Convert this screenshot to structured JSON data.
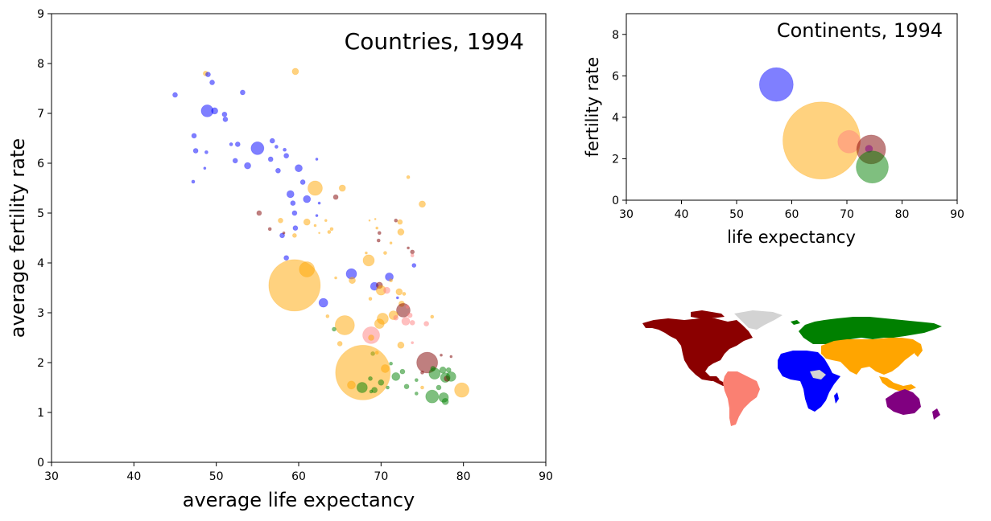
{
  "chart_data": [
    {
      "type": "scatter",
      "title": "Countries, 1994",
      "xlabel": "average life expectancy",
      "ylabel": "average fertility rate",
      "xlim": [
        30,
        90
      ],
      "ylim": [
        0,
        9
      ],
      "xticks": [
        "30",
        "40",
        "50",
        "60",
        "70",
        "80",
        "90"
      ],
      "yticks": [
        "0",
        "1",
        "2",
        "3",
        "4",
        "5",
        "6",
        "7",
        "8",
        "9"
      ],
      "grid": false,
      "points": [
        {
          "x": 45.0,
          "y": 7.37,
          "s": 3.0,
          "c": "#0000ff"
        },
        {
          "x": 48.9,
          "y": 7.05,
          "s": 7.5,
          "c": "#0000ff"
        },
        {
          "x": 48.7,
          "y": 7.8,
          "s": 3.0,
          "c": "#ffa500"
        },
        {
          "x": 49.0,
          "y": 7.78,
          "s": 3.0,
          "c": "#0000ff"
        },
        {
          "x": 49.5,
          "y": 7.62,
          "s": 3.0,
          "c": "#0000ff"
        },
        {
          "x": 49.8,
          "y": 7.05,
          "s": 4.0,
          "c": "#0000ff"
        },
        {
          "x": 51.0,
          "y": 6.98,
          "s": 3.0,
          "c": "#0000ff"
        },
        {
          "x": 51.1,
          "y": 6.88,
          "s": 3.0,
          "c": "#0000ff"
        },
        {
          "x": 53.2,
          "y": 7.42,
          "s": 3.0,
          "c": "#0000ff"
        },
        {
          "x": 59.6,
          "y": 7.84,
          "s": 4.0,
          "c": "#ffa500"
        },
        {
          "x": 47.3,
          "y": 6.55,
          "s": 3.0,
          "c": "#0000ff"
        },
        {
          "x": 47.5,
          "y": 6.25,
          "s": 3.0,
          "c": "#0000ff"
        },
        {
          "x": 48.8,
          "y": 6.22,
          "s": 2.0,
          "c": "#0000ff"
        },
        {
          "x": 47.2,
          "y": 5.63,
          "s": 2.0,
          "c": "#0000ff"
        },
        {
          "x": 48.6,
          "y": 5.9,
          "s": 1.5,
          "c": "#0000ff"
        },
        {
          "x": 51.8,
          "y": 6.38,
          "s": 2.0,
          "c": "#0000ff"
        },
        {
          "x": 52.6,
          "y": 6.38,
          "s": 3.0,
          "c": "#0000ff"
        },
        {
          "x": 52.3,
          "y": 6.05,
          "s": 3.0,
          "c": "#0000ff"
        },
        {
          "x": 53.8,
          "y": 5.95,
          "s": 4.0,
          "c": "#0000ff"
        },
        {
          "x": 55.0,
          "y": 6.3,
          "s": 8.0,
          "c": "#0000ff"
        },
        {
          "x": 56.8,
          "y": 6.45,
          "s": 3.0,
          "c": "#0000ff"
        },
        {
          "x": 57.3,
          "y": 6.33,
          "s": 2.0,
          "c": "#0000ff"
        },
        {
          "x": 56.6,
          "y": 6.08,
          "s": 3.0,
          "c": "#0000ff"
        },
        {
          "x": 58.3,
          "y": 6.27,
          "s": 2.0,
          "c": "#0000ff"
        },
        {
          "x": 58.5,
          "y": 6.15,
          "s": 3.0,
          "c": "#0000ff"
        },
        {
          "x": 57.5,
          "y": 5.85,
          "s": 3.0,
          "c": "#0000ff"
        },
        {
          "x": 60.0,
          "y": 5.9,
          "s": 4.5,
          "c": "#0000ff"
        },
        {
          "x": 60.5,
          "y": 5.62,
          "s": 3.0,
          "c": "#0000ff"
        },
        {
          "x": 62.2,
          "y": 6.08,
          "s": 1.5,
          "c": "#0000ff"
        },
        {
          "x": 59.0,
          "y": 5.38,
          "s": 4.5,
          "c": "#0000ff"
        },
        {
          "x": 59.3,
          "y": 5.2,
          "s": 3.0,
          "c": "#0000ff"
        },
        {
          "x": 59.5,
          "y": 5.0,
          "s": 3.0,
          "c": "#0000ff"
        },
        {
          "x": 59.6,
          "y": 4.7,
          "s": 3.0,
          "c": "#0000ff"
        },
        {
          "x": 58.0,
          "y": 4.55,
          "s": 3.0,
          "c": "#0000ff"
        },
        {
          "x": 62.0,
          "y": 5.5,
          "s": 9.0,
          "c": "#ffa500"
        },
        {
          "x": 61.0,
          "y": 5.28,
          "s": 4.5,
          "c": "#0000ff"
        },
        {
          "x": 62.5,
          "y": 5.2,
          "s": 1.5,
          "c": "#0000ff"
        },
        {
          "x": 62.2,
          "y": 4.95,
          "s": 1.5,
          "c": "#0000ff"
        },
        {
          "x": 65.3,
          "y": 5.5,
          "s": 4.0,
          "c": "#ffa500"
        },
        {
          "x": 64.5,
          "y": 5.32,
          "s": 3.0,
          "c": "#800000"
        },
        {
          "x": 55.2,
          "y": 5.0,
          "s": 3.0,
          "c": "#800000"
        },
        {
          "x": 57.8,
          "y": 4.85,
          "s": 3.0,
          "c": "#ffa500"
        },
        {
          "x": 61.0,
          "y": 4.82,
          "s": 4.0,
          "c": "#ffa500"
        },
        {
          "x": 62.0,
          "y": 4.75,
          "s": 1.5,
          "c": "#ffa500"
        },
        {
          "x": 63.3,
          "y": 4.85,
          "s": 1.5,
          "c": "#ffa500"
        },
        {
          "x": 64.0,
          "y": 4.68,
          "s": 2.0,
          "c": "#ffa500"
        },
        {
          "x": 63.7,
          "y": 4.62,
          "s": 2.0,
          "c": "#ffa500"
        },
        {
          "x": 56.5,
          "y": 4.68,
          "s": 2.0,
          "c": "#800000"
        },
        {
          "x": 58.2,
          "y": 4.6,
          "s": 1.5,
          "c": "#800000"
        },
        {
          "x": 62.5,
          "y": 4.6,
          "s": 1.0,
          "c": "#ffa500"
        },
        {
          "x": 59.5,
          "y": 4.55,
          "s": 2.5,
          "c": "#ffa500"
        },
        {
          "x": 58.5,
          "y": 4.1,
          "s": 3.0,
          "c": "#0000ff"
        },
        {
          "x": 68.6,
          "y": 4.85,
          "s": 1.0,
          "c": "#ffa500"
        },
        {
          "x": 69.3,
          "y": 4.88,
          "s": 1.0,
          "c": "#ffa500"
        },
        {
          "x": 72.3,
          "y": 4.82,
          "s": 3.0,
          "c": "#ffa500"
        },
        {
          "x": 71.8,
          "y": 4.85,
          "s": 2.0,
          "c": "#800000"
        },
        {
          "x": 73.3,
          "y": 5.72,
          "s": 2.0,
          "c": "#ffa500"
        },
        {
          "x": 75.0,
          "y": 5.18,
          "s": 4.0,
          "c": "#ffa500"
        },
        {
          "x": 69.5,
          "y": 4.7,
          "s": 1.5,
          "c": "#ffa500"
        },
        {
          "x": 69.8,
          "y": 4.6,
          "s": 2.0,
          "c": "#800000"
        },
        {
          "x": 72.4,
          "y": 4.62,
          "s": 4.0,
          "c": "#ffa500"
        },
        {
          "x": 69.7,
          "y": 4.45,
          "s": 2.0,
          "c": "#800000"
        },
        {
          "x": 71.2,
          "y": 4.4,
          "s": 1.5,
          "c": "#ffa500"
        },
        {
          "x": 73.3,
          "y": 4.3,
          "s": 1.5,
          "c": "#800000"
        },
        {
          "x": 68.2,
          "y": 4.2,
          "s": 1.5,
          "c": "#ffa500"
        },
        {
          "x": 70.5,
          "y": 4.2,
          "s": 2.0,
          "c": "#ffa500"
        },
        {
          "x": 73.8,
          "y": 4.22,
          "s": 2.5,
          "c": "#800000"
        },
        {
          "x": 73.8,
          "y": 4.15,
          "s": 2.0,
          "c": "#ff8080"
        },
        {
          "x": 68.5,
          "y": 4.05,
          "s": 7.0,
          "c": "#ffa500"
        },
        {
          "x": 74.0,
          "y": 3.95,
          "s": 2.5,
          "c": "#0000ff"
        },
        {
          "x": 61.0,
          "y": 3.87,
          "s": 9.5,
          "c": "#ffa500"
        },
        {
          "x": 59.5,
          "y": 3.55,
          "s": 32.0,
          "c": "#ffa500"
        },
        {
          "x": 64.5,
          "y": 3.7,
          "s": 1.5,
          "c": "#ffa500"
        },
        {
          "x": 66.4,
          "y": 3.78,
          "s": 6.5,
          "c": "#0000ff"
        },
        {
          "x": 66.5,
          "y": 3.65,
          "s": 4.0,
          "c": "#ffa500"
        },
        {
          "x": 71.0,
          "y": 3.72,
          "s": 5.0,
          "c": "#0000ff"
        },
        {
          "x": 71.2,
          "y": 3.65,
          "s": 2.0,
          "c": "#ffa500"
        },
        {
          "x": 69.2,
          "y": 3.53,
          "s": 5.0,
          "c": "#0000ff"
        },
        {
          "x": 69.8,
          "y": 3.55,
          "s": 4.0,
          "c": "#800000"
        },
        {
          "x": 70.0,
          "y": 3.45,
          "s": 6.0,
          "c": "#ffa500"
        },
        {
          "x": 70.7,
          "y": 3.45,
          "s": 4.0,
          "c": "#ff8080"
        },
        {
          "x": 72.2,
          "y": 3.42,
          "s": 4.0,
          "c": "#ffa500"
        },
        {
          "x": 72.8,
          "y": 3.38,
          "s": 2.0,
          "c": "#ffa500"
        },
        {
          "x": 72.0,
          "y": 3.3,
          "s": 1.5,
          "c": "#0000ff"
        },
        {
          "x": 68.7,
          "y": 3.28,
          "s": 2.0,
          "c": "#ffa500"
        },
        {
          "x": 63.0,
          "y": 3.2,
          "s": 5.5,
          "c": "#0000ff"
        },
        {
          "x": 72.5,
          "y": 3.18,
          "s": 3.5,
          "c": "#ffa500"
        },
        {
          "x": 72.7,
          "y": 3.05,
          "s": 8.5,
          "c": "#800000"
        },
        {
          "x": 73.2,
          "y": 3.12,
          "s": 2.0,
          "c": "#ff8080"
        },
        {
          "x": 71.5,
          "y": 2.95,
          "s": 5.5,
          "c": "#ffa500"
        },
        {
          "x": 70.2,
          "y": 2.88,
          "s": 7.0,
          "c": "#ffa500"
        },
        {
          "x": 69.8,
          "y": 2.78,
          "s": 6.0,
          "c": "#ffa500"
        },
        {
          "x": 71.8,
          "y": 2.9,
          "s": 3.0,
          "c": "#ff8080"
        },
        {
          "x": 73.5,
          "y": 2.95,
          "s": 3.0,
          "c": "#ff8080"
        },
        {
          "x": 73.0,
          "y": 2.83,
          "s": 5.0,
          "c": "#ff8080"
        },
        {
          "x": 73.8,
          "y": 2.8,
          "s": 3.0,
          "c": "#ff8080"
        },
        {
          "x": 75.5,
          "y": 2.78,
          "s": 3.0,
          "c": "#ff8080"
        },
        {
          "x": 76.2,
          "y": 2.92,
          "s": 2.0,
          "c": "#ffa500"
        },
        {
          "x": 65.6,
          "y": 2.75,
          "s": 12.0,
          "c": "#ffa500"
        },
        {
          "x": 63.5,
          "y": 2.93,
          "s": 2.0,
          "c": "#ffa500"
        },
        {
          "x": 68.8,
          "y": 2.55,
          "s": 10.5,
          "c": "#ff8080"
        },
        {
          "x": 64.3,
          "y": 2.67,
          "s": 2.5,
          "c": "#008000"
        },
        {
          "x": 68.8,
          "y": 2.5,
          "s": 3.5,
          "c": "#ffa500"
        },
        {
          "x": 72.4,
          "y": 2.35,
          "s": 4.0,
          "c": "#ffa500"
        },
        {
          "x": 73.8,
          "y": 2.4,
          "s": 1.5,
          "c": "#ff8080"
        },
        {
          "x": 65.0,
          "y": 2.38,
          "s": 3.0,
          "c": "#ffa500"
        },
        {
          "x": 69.0,
          "y": 2.18,
          "s": 2.5,
          "c": "#008000"
        },
        {
          "x": 69.5,
          "y": 2.2,
          "s": 2.0,
          "c": "#ffa500"
        },
        {
          "x": 77.3,
          "y": 2.15,
          "s": 1.5,
          "c": "#800000"
        },
        {
          "x": 75.6,
          "y": 2.0,
          "s": 13.0,
          "c": "#800000"
        },
        {
          "x": 75.0,
          "y": 1.8,
          "s": 2.0,
          "c": "#800000"
        },
        {
          "x": 78.5,
          "y": 2.12,
          "s": 1.5,
          "c": "#800000"
        },
        {
          "x": 67.8,
          "y": 1.8,
          "s": 34.0,
          "c": "#ffa500"
        },
        {
          "x": 70.5,
          "y": 1.88,
          "s": 5.0,
          "c": "#ffa500"
        },
        {
          "x": 71.2,
          "y": 1.98,
          "s": 2.0,
          "c": "#008000"
        },
        {
          "x": 71.8,
          "y": 1.72,
          "s": 5.0,
          "c": "#008000"
        },
        {
          "x": 72.6,
          "y": 1.82,
          "s": 3.0,
          "c": "#008000"
        },
        {
          "x": 70.0,
          "y": 1.6,
          "s": 3.5,
          "c": "#008000"
        },
        {
          "x": 68.7,
          "y": 1.68,
          "s": 2.5,
          "c": "#008000"
        },
        {
          "x": 66.4,
          "y": 1.55,
          "s": 5.0,
          "c": "#ffa500"
        },
        {
          "x": 67.7,
          "y": 1.5,
          "s": 6.5,
          "c": "#008000"
        },
        {
          "x": 69.2,
          "y": 1.45,
          "s": 3.5,
          "c": "#008000"
        },
        {
          "x": 70.8,
          "y": 1.5,
          "s": 2.0,
          "c": "#008000"
        },
        {
          "x": 73.1,
          "y": 1.52,
          "s": 3.0,
          "c": "#008000"
        },
        {
          "x": 74.3,
          "y": 1.65,
          "s": 2.0,
          "c": "#008000"
        },
        {
          "x": 74.3,
          "y": 1.38,
          "s": 2.0,
          "c": "#008000"
        },
        {
          "x": 76.3,
          "y": 1.88,
          "s": 3.0,
          "c": "#008000"
        },
        {
          "x": 76.5,
          "y": 1.78,
          "s": 7.0,
          "c": "#008000"
        },
        {
          "x": 77.5,
          "y": 1.85,
          "s": 4.0,
          "c": "#008000"
        },
        {
          "x": 78.2,
          "y": 1.85,
          "s": 3.0,
          "c": "#008000"
        },
        {
          "x": 77.8,
          "y": 1.7,
          "s": 6.0,
          "c": "#008000"
        },
        {
          "x": 78.0,
          "y": 1.68,
          "s": 3.5,
          "c": "#800000"
        },
        {
          "x": 78.5,
          "y": 1.72,
          "s": 6.0,
          "c": "#008000"
        },
        {
          "x": 77.0,
          "y": 1.5,
          "s": 3.0,
          "c": "#008000"
        },
        {
          "x": 76.2,
          "y": 1.32,
          "s": 8.0,
          "c": "#008000"
        },
        {
          "x": 77.6,
          "y": 1.3,
          "s": 6.0,
          "c": "#008000"
        },
        {
          "x": 77.8,
          "y": 1.22,
          "s": 4.0,
          "c": "#008000"
        },
        {
          "x": 75.0,
          "y": 1.5,
          "s": 2.0,
          "c": "#ffa500"
        },
        {
          "x": 79.8,
          "y": 1.45,
          "s": 9.0,
          "c": "#ffa500"
        },
        {
          "x": 68.8,
          "y": 1.42,
          "s": 2.0,
          "c": "#008000"
        }
      ]
    },
    {
      "type": "scatter",
      "title": "Continents, 1994",
      "xlabel": "life expectancy",
      "ylabel": "fertility rate",
      "xlim": [
        30,
        90
      ],
      "ylim": [
        0,
        9
      ],
      "xticks": [
        "30",
        "40",
        "50",
        "60",
        "70",
        "80",
        "90"
      ],
      "yticks": [
        "0",
        "2",
        "4",
        "6",
        "8"
      ],
      "grid": false,
      "points": [
        {
          "x": 57.2,
          "y": 5.58,
          "s": 21.0,
          "c": "#0000ff"
        },
        {
          "x": 65.4,
          "y": 2.88,
          "s": 48.0,
          "c": "#ffa500"
        },
        {
          "x": 70.4,
          "y": 2.82,
          "s": 14.0,
          "c": "#ff8080"
        },
        {
          "x": 74.4,
          "y": 2.45,
          "s": 18.0,
          "c": "#800000"
        },
        {
          "x": 74.0,
          "y": 2.48,
          "s": 4.5,
          "c": "#800080"
        },
        {
          "x": 74.6,
          "y": 1.6,
          "s": 20.0,
          "c": "#008000"
        }
      ]
    }
  ],
  "map": {
    "legend_colors": {
      "north_america": "#8b0000",
      "south_america": "#fa8072",
      "europe": "#008000",
      "africa": "#0000ff",
      "asia": "#ffa500",
      "oceania": "#800080",
      "no_data": "#d3d3d3"
    }
  }
}
